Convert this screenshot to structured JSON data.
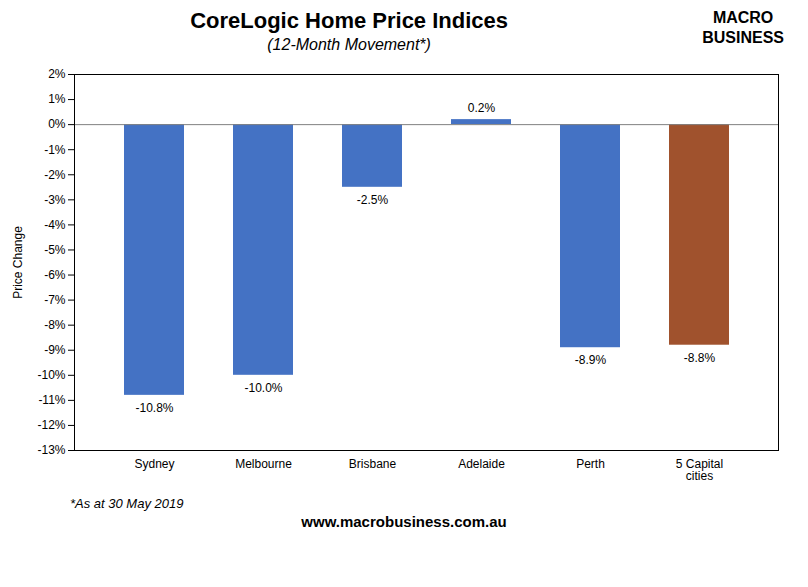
{
  "chart_data": {
    "type": "bar",
    "title": "CoreLogic Home Price Indices",
    "subtitle": "(12-Month Movement*)",
    "categories": [
      "Sydney",
      "Melbourne",
      "Brisbane",
      "Adelaide",
      "Perth",
      "5 Capital\ncities"
    ],
    "values": [
      -10.8,
      -10.0,
      -2.5,
      0.2,
      -8.9,
      -8.8
    ],
    "value_labels": [
      "-10.8%",
      "-10.0%",
      "-2.5%",
      "0.2%",
      "-8.9%",
      "-8.8%"
    ],
    "data_labels": true,
    "colors": [
      "#4472C4",
      "#4472C4",
      "#4472C4",
      "#4472C4",
      "#4472C4",
      "#A0522D"
    ],
    "ylabel": "Price Change",
    "ylim": [
      -13,
      2
    ],
    "yticks": [
      {
        "value": -13,
        "label": "-13%"
      },
      {
        "value": -12,
        "label": "-12%"
      },
      {
        "value": -11,
        "label": "-11%"
      },
      {
        "value": -10,
        "label": "-10%"
      },
      {
        "value": -9,
        "label": "-9%"
      },
      {
        "value": -8,
        "label": "-8%"
      },
      {
        "value": -7,
        "label": "-7%"
      },
      {
        "value": -6,
        "label": "-6%"
      },
      {
        "value": -5,
        "label": "-5%"
      },
      {
        "value": -4,
        "label": "-4%"
      },
      {
        "value": -3,
        "label": "-3%"
      },
      {
        "value": -2,
        "label": "-2%"
      },
      {
        "value": -1,
        "label": "-1%"
      },
      {
        "value": 0,
        "label": "0%"
      },
      {
        "value": 1,
        "label": "1%"
      },
      {
        "value": 2,
        "label": "2%"
      }
    ],
    "grid": false,
    "annotations": [
      "MACRO",
      "BUSINESS",
      "*As at 30 May 2019",
      "www.macrobusiness.com.au"
    ]
  }
}
